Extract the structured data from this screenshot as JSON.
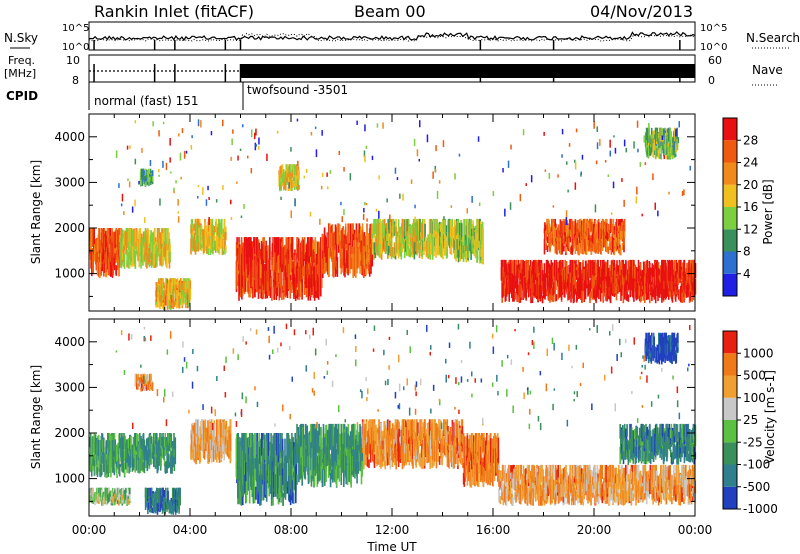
{
  "header": {
    "station": "Rankin Inlet (fitACF)",
    "beam": "Beam 00",
    "date": "04/Nov/2013"
  },
  "noise_panel": {
    "left_label": "N.Sky",
    "right_label": "N.Search",
    "y_top_label": "10^5",
    "y_bottom_label": "10^0"
  },
  "freq_panel": {
    "left_label_1": "Freq.",
    "left_label_2": "[MHz]",
    "right_label": "Nave",
    "left_ticks": [
      "10",
      "8"
    ],
    "right_ticks": [
      "60",
      "0"
    ]
  },
  "cpid_panel": {
    "label": "CPID",
    "programs": [
      {
        "name": "normal (fast) 151",
        "start_hour": 0
      },
      {
        "name": "twofsound -3501",
        "start_hour": 6.0
      }
    ]
  },
  "x_axis": {
    "title": "Time UT",
    "tick_labels": [
      "00:00",
      "04:00",
      "08:00",
      "12:00",
      "16:00",
      "20:00",
      "00:00"
    ],
    "range_hours": [
      0,
      24
    ]
  },
  "chart_data": [
    {
      "type": "heatmap",
      "quantity": "Power",
      "colorbar_label": "Power [dB]",
      "ylabel": "Slant Range [km]",
      "ylim": [
        180,
        4500
      ],
      "yticks": [
        1000,
        2000,
        3000,
        4000
      ],
      "colorbar_ticks": [
        4,
        8,
        12,
        16,
        20,
        24,
        28
      ],
      "colors": [
        "#1f1fe6",
        "#2f6fcf",
        "#3b8f5a",
        "#7ccf3f",
        "#f0c020",
        "#f08a1a",
        "#ef5a10",
        "#e81010"
      ],
      "echo_regions": [
        {
          "t0": 0.0,
          "t1": 1.2,
          "r0": 900,
          "r1": 2000,
          "level": 0.85
        },
        {
          "t0": 1.2,
          "t1": 3.2,
          "r0": 1100,
          "r1": 2000,
          "level": 0.55
        },
        {
          "t0": 2.6,
          "t1": 4.0,
          "r0": 200,
          "r1": 900,
          "level": 0.6
        },
        {
          "t0": 4.0,
          "t1": 5.4,
          "r0": 1400,
          "r1": 2200,
          "level": 0.55
        },
        {
          "t0": 5.8,
          "t1": 9.2,
          "r0": 400,
          "r1": 1800,
          "level": 0.9
        },
        {
          "t0": 9.2,
          "t1": 11.2,
          "r0": 900,
          "r1": 2100,
          "level": 0.8
        },
        {
          "t0": 11.2,
          "t1": 14.5,
          "r0": 1300,
          "r1": 2200,
          "level": 0.5
        },
        {
          "t0": 14.5,
          "t1": 15.6,
          "r0": 1200,
          "r1": 2200,
          "level": 0.45
        },
        {
          "t0": 16.3,
          "t1": 24.0,
          "r0": 350,
          "r1": 1300,
          "level": 0.95
        },
        {
          "t0": 18.0,
          "t1": 21.2,
          "r0": 1400,
          "r1": 2200,
          "level": 0.8
        },
        {
          "t0": 22.0,
          "t1": 23.3,
          "r0": 3500,
          "r1": 4200,
          "level": 0.4
        },
        {
          "t0": 2.0,
          "t1": 2.5,
          "r0": 2900,
          "r1": 3300,
          "level": 0.3
        },
        {
          "t0": 7.5,
          "t1": 8.3,
          "r0": 2800,
          "r1": 3400,
          "level": 0.55
        }
      ]
    },
    {
      "type": "heatmap",
      "quantity": "Velocity",
      "colorbar_label": "Velocity [m s-1]",
      "ylabel": "Slant Range [km]",
      "ylim": [
        180,
        4500
      ],
      "yticks": [
        1000,
        2000,
        3000,
        4000
      ],
      "colorbar_ticks": [
        1000,
        500,
        100,
        25,
        -25,
        -100,
        -500,
        -1000
      ],
      "colors": [
        "#2040c0",
        "#2f7f8f",
        "#3a8f5a",
        "#5cc040",
        "#c8c8c8",
        "#f0a030",
        "#f07a18",
        "#e82010"
      ],
      "echo_regions": [
        {
          "t0": 0.0,
          "t1": 1.4,
          "r0": 1000,
          "r1": 2000,
          "level": 0.35
        },
        {
          "t0": 0.0,
          "t1": 1.6,
          "r0": 400,
          "r1": 800,
          "level": 0.48
        },
        {
          "t0": 1.4,
          "t1": 3.4,
          "r0": 1100,
          "r1": 2000,
          "level": 0.3
        },
        {
          "t0": 2.2,
          "t1": 3.6,
          "r0": 200,
          "r1": 800,
          "level": 0.2
        },
        {
          "t0": 4.0,
          "t1": 5.6,
          "r0": 1300,
          "r1": 2300,
          "level": 0.7
        },
        {
          "t0": 5.8,
          "t1": 8.2,
          "r0": 400,
          "r1": 2000,
          "level": 0.25
        },
        {
          "t0": 8.2,
          "t1": 10.8,
          "r0": 800,
          "r1": 2200,
          "level": 0.3
        },
        {
          "t0": 10.8,
          "t1": 14.8,
          "r0": 1200,
          "r1": 2300,
          "level": 0.75
        },
        {
          "t0": 14.8,
          "t1": 16.2,
          "r0": 800,
          "r1": 2000,
          "level": 0.8
        },
        {
          "t0": 16.2,
          "t1": 24.0,
          "r0": 400,
          "r1": 1300,
          "level": 0.72
        },
        {
          "t0": 21.0,
          "t1": 24.0,
          "r0": 1300,
          "r1": 2200,
          "level": 0.25
        },
        {
          "t0": 22.0,
          "t1": 23.3,
          "r0": 3500,
          "r1": 4200,
          "level": 0.05
        },
        {
          "t0": 1.8,
          "t1": 2.5,
          "r0": 2900,
          "r1": 3300,
          "level": 0.75
        }
      ]
    }
  ]
}
